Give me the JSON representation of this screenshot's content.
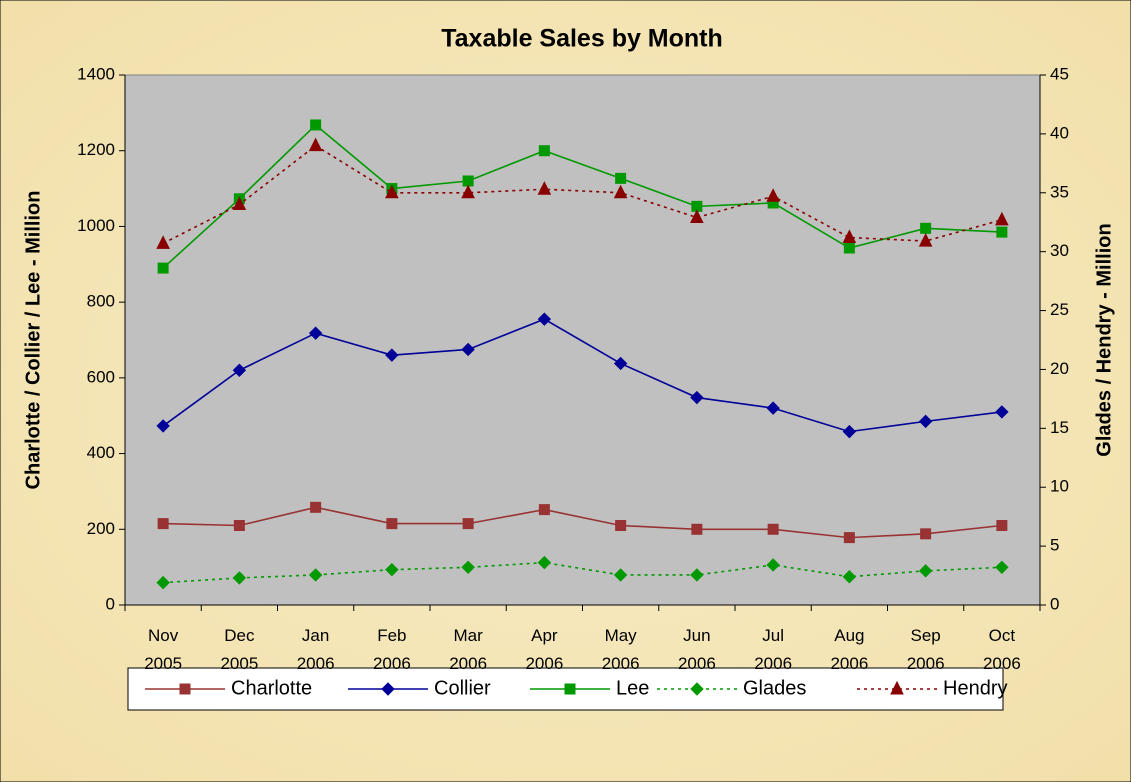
{
  "chart_data": {
    "type": "line",
    "title": "Taxable Sales by Month",
    "y_label": "Charlotte / Collier / Lee - Million",
    "y2_label": "Glades / Hendry - Million",
    "categories": [
      "Nov 2005",
      "Dec 2005",
      "Jan 2006",
      "Feb 2006",
      "Mar 2006",
      "Apr 2006",
      "May 2006",
      "Jun 2006",
      "Jul 2006",
      "Aug 2006",
      "Sep 2006",
      "Oct 2006"
    ],
    "ylim": [
      0,
      1400
    ],
    "yticks": [
      0,
      200,
      400,
      600,
      800,
      1000,
      1200,
      1400
    ],
    "y2lim": [
      0,
      45
    ],
    "y2ticks": [
      0,
      5,
      10,
      15,
      20,
      25,
      30,
      35,
      40,
      45
    ],
    "legend": "bottom",
    "series": [
      {
        "name": "Charlotte",
        "color": "#993333",
        "marker": "square",
        "dashed": false,
        "values": [
          215,
          210,
          258,
          215,
          215,
          252,
          210,
          200,
          200,
          178,
          188,
          210
        ]
      },
      {
        "name": "Collier",
        "color": "#000099",
        "marker": "diamond",
        "dashed": false,
        "values": [
          473,
          620,
          718,
          660,
          675,
          755,
          638,
          548,
          520,
          458,
          485,
          510
        ]
      },
      {
        "name": "Lee",
        "color": "#009900",
        "marker": "square",
        "dashed": false,
        "values": [
          890,
          1073,
          1268,
          1100,
          1120,
          1200,
          1127,
          1053,
          1062,
          943,
          995,
          985
        ]
      },
      {
        "name": "Glades",
        "color": "#009900",
        "marker": "diamond",
        "dashed": true,
        "axis": "y2",
        "values": [
          1.9,
          2.3,
          2.55,
          3.0,
          3.2,
          3.6,
          2.55,
          2.55,
          3.4,
          2.4,
          2.9,
          3.2
        ]
      },
      {
        "name": "Hendry",
        "color": "#880000",
        "marker": "triangle",
        "dashed": true,
        "axis": "y2",
        "values": [
          30.7,
          34.0,
          39.0,
          35.0,
          35.0,
          35.3,
          35.0,
          32.9,
          34.7,
          31.2,
          30.9,
          32.7
        ]
      }
    ]
  }
}
